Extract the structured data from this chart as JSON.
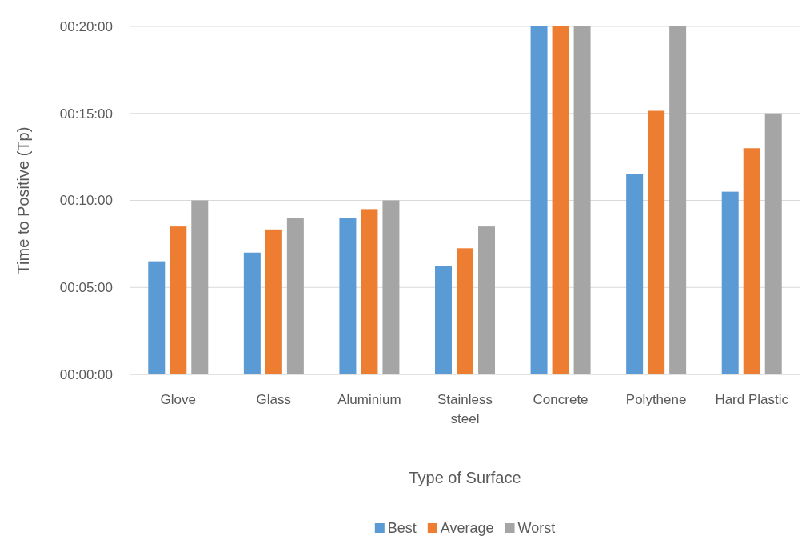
{
  "chart_data": {
    "type": "bar",
    "xlabel": "Type of Surface",
    "ylabel": "Time to Positive (Tp)",
    "categories": [
      "Glove",
      "Glass",
      "Aluminium",
      "Stainless steel",
      "Concrete",
      "Polythene",
      "Hard Plastic"
    ],
    "series": [
      {
        "name": "Best",
        "color": "#5b9bd5",
        "values": [
          6.5,
          7.0,
          9.0,
          6.25,
          20,
          11.5,
          10.5
        ]
      },
      {
        "name": "Average",
        "color": "#ed7d31",
        "values": [
          8.5,
          8.33,
          9.5,
          7.25,
          20,
          15.15,
          13
        ]
      },
      {
        "name": "Worst",
        "color": "#a5a5a5",
        "values": [
          10,
          9,
          10,
          8.5,
          20,
          20,
          15
        ]
      }
    ],
    "ylim": [
      0,
      20
    ],
    "yticks": [
      {
        "value": 0,
        "label": "00:00:00"
      },
      {
        "value": 5,
        "label": "00:05:00"
      },
      {
        "value": 10,
        "label": "00:10:00"
      },
      {
        "value": 15,
        "label": "00:15:00"
      },
      {
        "value": 20,
        "label": "00:20:00"
      }
    ],
    "grid": "y",
    "legend": "bottom"
  }
}
